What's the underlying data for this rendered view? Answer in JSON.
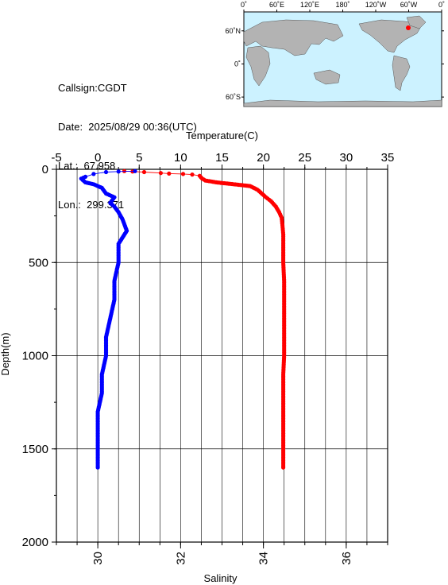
{
  "info": {
    "callsign": "Callsign:CGDT",
    "date": "Date:  2025/08/29 00:36(UTC)",
    "lat": "Lat.:  67.958",
    "lon": "Lon.:  299.371"
  },
  "map": {
    "lon_labels": [
      "0˚",
      "60˚E",
      "120˚E",
      "180˚",
      "120˚W",
      "60˚W",
      "0˚"
    ],
    "lat_labels": [
      "60˚N",
      "0˚",
      "60˚S"
    ],
    "ocean_color": "#ccf2ff",
    "land_color": "#b3b3b3",
    "marker_color": "#ff0000"
  },
  "chart_data": {
    "type": "line",
    "depth_axis": {
      "label": "Depth(m)",
      "range": [
        0,
        2000
      ],
      "ticks": [
        "0",
        "500",
        "1000",
        "1500",
        "2000"
      ]
    },
    "temperature_axis": {
      "label": "Temperature(C)",
      "range": [
        -5,
        35
      ],
      "ticks": [
        "-5",
        "0",
        "5",
        "10",
        "15",
        "20",
        "25",
        "30",
        "35"
      ]
    },
    "salinity_axis": {
      "label": "Salinity",
      "range": [
        29,
        37
      ],
      "ticks": [
        "30",
        "32",
        "34",
        "36"
      ]
    },
    "grid": true,
    "series": [
      {
        "color": "#ff0000",
        "axis": "temperature",
        "points": [
          [
            3.2,
            10
          ],
          [
            4.2,
            12
          ],
          [
            5.6,
            15
          ],
          [
            7.6,
            20
          ],
          [
            8.6,
            23
          ],
          [
            10.3,
            25
          ],
          [
            11.4,
            28
          ],
          [
            12.3,
            35
          ],
          [
            12.6,
            50
          ],
          [
            13.0,
            60
          ],
          [
            14.3,
            70
          ],
          [
            16.4,
            80
          ],
          [
            18.4,
            90
          ],
          [
            19.3,
            110
          ],
          [
            19.8,
            130
          ],
          [
            20.3,
            150
          ],
          [
            20.9,
            170
          ],
          [
            21.5,
            200
          ],
          [
            21.9,
            230
          ],
          [
            22.2,
            260
          ],
          [
            22.3,
            300
          ],
          [
            22.4,
            350
          ],
          [
            22.4,
            400
          ],
          [
            22.4,
            500
          ],
          [
            22.5,
            600
          ],
          [
            22.5,
            700
          ],
          [
            22.5,
            800
          ],
          [
            22.5,
            900
          ],
          [
            22.5,
            1000
          ],
          [
            22.4,
            1100
          ],
          [
            22.4,
            1200
          ],
          [
            22.4,
            1300
          ],
          [
            22.4,
            1400
          ],
          [
            22.4,
            1500
          ],
          [
            22.4,
            1600
          ]
        ]
      },
      {
        "color": "#0000ff",
        "axis": "salinity",
        "points": [
          [
            30.9,
            10
          ],
          [
            30.5,
            12
          ],
          [
            30.2,
            15
          ],
          [
            29.9,
            25
          ],
          [
            29.7,
            40
          ],
          [
            29.6,
            50
          ],
          [
            29.7,
            70
          ],
          [
            29.9,
            80
          ],
          [
            30.1,
            100
          ],
          [
            30.2,
            130
          ],
          [
            30.4,
            150
          ],
          [
            30.3,
            180
          ],
          [
            30.4,
            200
          ],
          [
            30.5,
            230
          ],
          [
            30.6,
            270
          ],
          [
            30.7,
            330
          ],
          [
            30.5,
            400
          ],
          [
            30.5,
            500
          ],
          [
            30.4,
            600
          ],
          [
            30.4,
            700
          ],
          [
            30.3,
            800
          ],
          [
            30.2,
            900
          ],
          [
            30.2,
            1000
          ],
          [
            30.1,
            1100
          ],
          [
            30.1,
            1200
          ],
          [
            30.0,
            1300
          ],
          [
            30.0,
            1400
          ],
          [
            30.0,
            1500
          ],
          [
            30.0,
            1600
          ]
        ]
      }
    ]
  }
}
